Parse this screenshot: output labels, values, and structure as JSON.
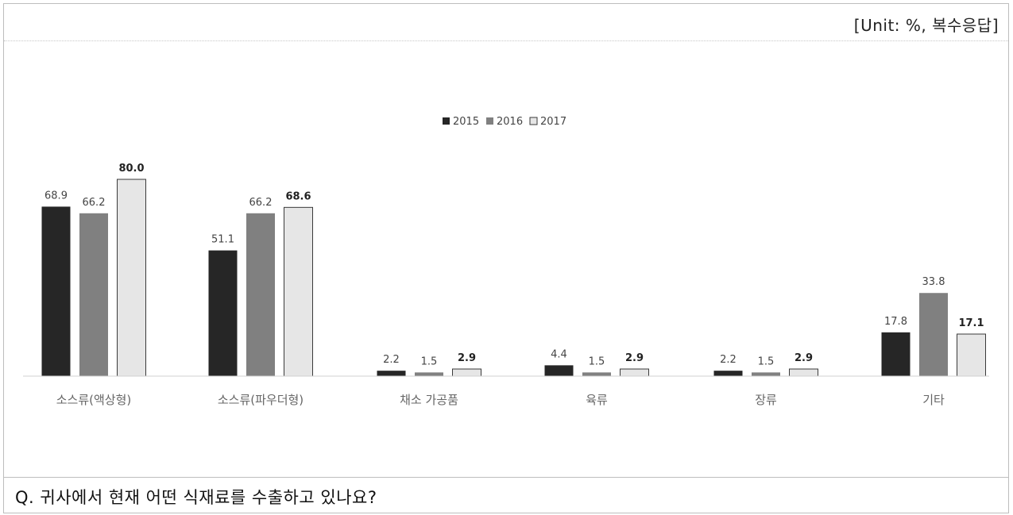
{
  "unit_label": "[Unit: %, 복수응답]",
  "question": "Q. 귀사에서 현재 어떤 식재료를 수출하고 있나요?",
  "colors": {
    "2015": "#262626",
    "2016": "#808080",
    "2017": "#e6e6e6"
  },
  "chart_data": {
    "type": "bar",
    "categories": [
      "소스류(액상형)",
      "소스류(파우더형)",
      "채소 가공품",
      "육류",
      "장류",
      "기타"
    ],
    "series": [
      {
        "name": "2015",
        "values": [
          68.9,
          51.1,
          2.2,
          4.4,
          2.2,
          17.8
        ]
      },
      {
        "name": "2016",
        "values": [
          66.2,
          66.2,
          1.5,
          1.5,
          1.5,
          33.8
        ]
      },
      {
        "name": "2017",
        "values": [
          80.0,
          68.6,
          2.9,
          2.9,
          2.9,
          17.1
        ]
      }
    ],
    "value_labels": [
      [
        "68.9",
        "51.1",
        "2.2",
        "4.4",
        "2.2",
        "17.8"
      ],
      [
        "66.2",
        "66.2",
        "1.5",
        "1.5",
        "1.5",
        "33.8"
      ],
      [
        "80.0",
        "68.6",
        "2.9",
        "2.9",
        "2.9",
        "17.1"
      ]
    ],
    "bold_series": "2017",
    "ylim": [
      0,
      80
    ],
    "grid": false,
    "legend_position": "top-center",
    "title": "",
    "xlabel": "",
    "ylabel": ""
  }
}
